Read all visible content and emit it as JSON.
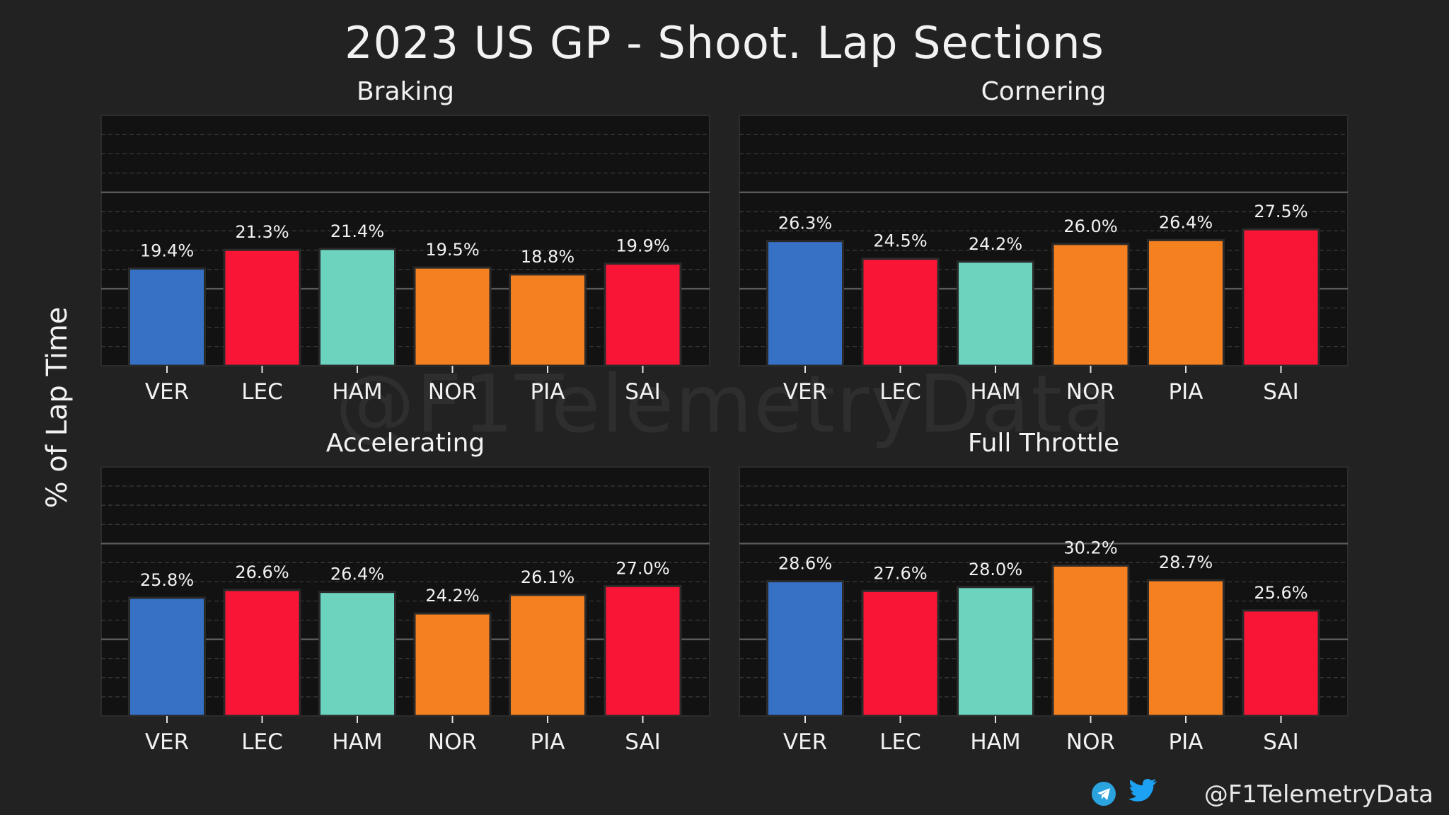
{
  "title": "2023 US GP - Shoot. Lap Sections",
  "ylabel": "% of Lap Time",
  "watermark": "@F1TelemetryData",
  "footer": {
    "handle": "@F1TelemetryData",
    "icons": [
      "telegram-icon",
      "twitter-icon"
    ]
  },
  "colors": {
    "background": "#222222",
    "plot_background": "#121212",
    "VER": "#3671C6",
    "LEC": "#F91536",
    "HAM": "#6CD3BF",
    "NOR": "#F58020",
    "PIA": "#F58020",
    "SAI": "#F91536"
  },
  "chart_data": [
    {
      "type": "bar",
      "title": "Braking",
      "categories": [
        "VER",
        "LEC",
        "HAM",
        "NOR",
        "PIA",
        "SAI"
      ],
      "values": [
        19.4,
        21.3,
        21.4,
        19.5,
        18.8,
        19.9
      ],
      "data_labels": [
        "19.4%",
        "21.3%",
        "21.4%",
        "19.5%",
        "18.8%",
        "19.9%"
      ],
      "ylim": [
        9.5,
        35
      ],
      "grid": true
    },
    {
      "type": "bar",
      "title": "Cornering",
      "categories": [
        "VER",
        "LEC",
        "HAM",
        "NOR",
        "PIA",
        "SAI"
      ],
      "values": [
        26.3,
        24.5,
        24.2,
        26.0,
        26.4,
        27.5
      ],
      "data_labels": [
        "26.3%",
        "24.5%",
        "24.2%",
        "26.0%",
        "26.4%",
        "27.5%"
      ],
      "ylim": [
        13.6,
        39.1
      ],
      "grid": true
    },
    {
      "type": "bar",
      "title": "Accelerating",
      "categories": [
        "VER",
        "LEC",
        "HAM",
        "NOR",
        "PIA",
        "SAI"
      ],
      "values": [
        25.8,
        26.6,
        26.4,
        24.2,
        26.1,
        27.0
      ],
      "data_labels": [
        "25.8%",
        "26.6%",
        "26.4%",
        "24.2%",
        "26.1%",
        "27.0%"
      ],
      "ylim": [
        13.7,
        39.2
      ],
      "grid": true
    },
    {
      "type": "bar",
      "title": "Full Throttle",
      "categories": [
        "VER",
        "LEC",
        "HAM",
        "NOR",
        "PIA",
        "SAI"
      ],
      "values": [
        28.6,
        27.6,
        28.0,
        30.2,
        28.7,
        25.6
      ],
      "data_labels": [
        "28.6%",
        "27.6%",
        "28.0%",
        "30.2%",
        "28.7%",
        "25.6%"
      ],
      "ylim": [
        14.8,
        40.3
      ],
      "grid": true
    }
  ]
}
